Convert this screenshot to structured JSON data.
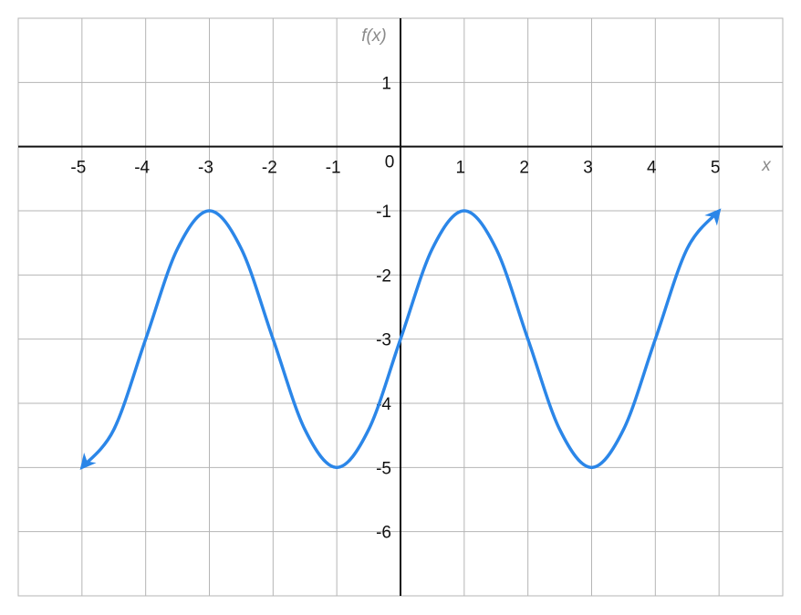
{
  "chart_data": {
    "type": "line",
    "x_label": "x",
    "y_label": "f(x)",
    "x": [
      -5,
      -4.5,
      -4,
      -3.5,
      -3,
      -2.5,
      -2,
      -1.5,
      -1,
      -0.5,
      0,
      0.5,
      1,
      1.5,
      2,
      2.5,
      3,
      3.5,
      4,
      4.5,
      5
    ],
    "series": [
      {
        "color": "#2b86e8",
        "values": [
          -5,
          -4.41,
          -3,
          -1.59,
          -1,
          -1.59,
          -3,
          -4.41,
          -5,
          -4.41,
          -3,
          -1.59,
          -1,
          -1.59,
          -3,
          -4.41,
          -5,
          -4.41,
          -3,
          -1.59,
          -1
        ]
      }
    ],
    "xlim": [
      -6,
      6
    ],
    "ylim": [
      -7,
      2
    ],
    "xticks": [
      -5,
      -4,
      -3,
      -2,
      -1,
      0,
      1,
      2,
      3,
      4,
      5
    ],
    "yticks": [
      -6,
      -5,
      -4,
      -3,
      -2,
      -1,
      1
    ],
    "grid": true
  }
}
